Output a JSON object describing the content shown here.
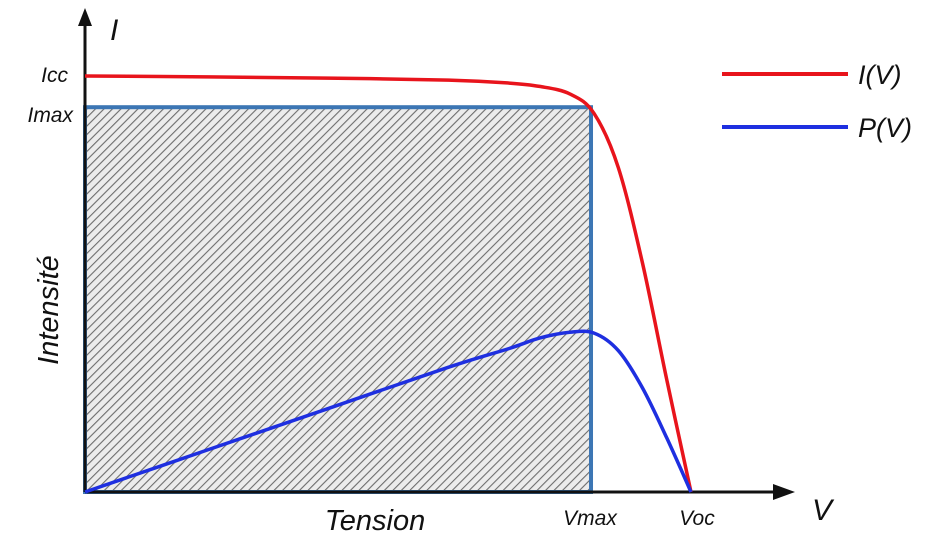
{
  "chart_data": {
    "type": "line",
    "x_axis_symbol": "V",
    "y_axis_symbol": "I",
    "xlabel": "Tension",
    "ylabel": "Intensité",
    "y_ticks": [
      "Icc",
      "Imax"
    ],
    "x_ticks": [
      "Vmax",
      "Voc"
    ],
    "series": [
      {
        "name": "I(V)",
        "color": "#e8141c",
        "x": [
          0,
          0.2,
          0.4,
          0.6,
          0.7,
          0.75,
          0.8,
          0.84,
          0.88,
          0.92,
          0.96,
          1.0
        ],
        "y": [
          1.0,
          0.998,
          0.995,
          0.99,
          0.983,
          0.975,
          0.957,
          0.91,
          0.78,
          0.55,
          0.27,
          0
        ]
      },
      {
        "name": "P(V)",
        "color": "#1e2fe0",
        "x": [
          0,
          0.2,
          0.4,
          0.6,
          0.7,
          0.75,
          0.8,
          0.84,
          0.88,
          0.92,
          0.96,
          1.0
        ],
        "y": [
          0,
          0.1,
          0.2,
          0.3,
          0.345,
          0.37,
          0.384,
          0.382,
          0.34,
          0.25,
          0.13,
          0
        ]
      }
    ],
    "max_power_rectangle": {
      "x": 0.835,
      "y": 0.925
    }
  }
}
